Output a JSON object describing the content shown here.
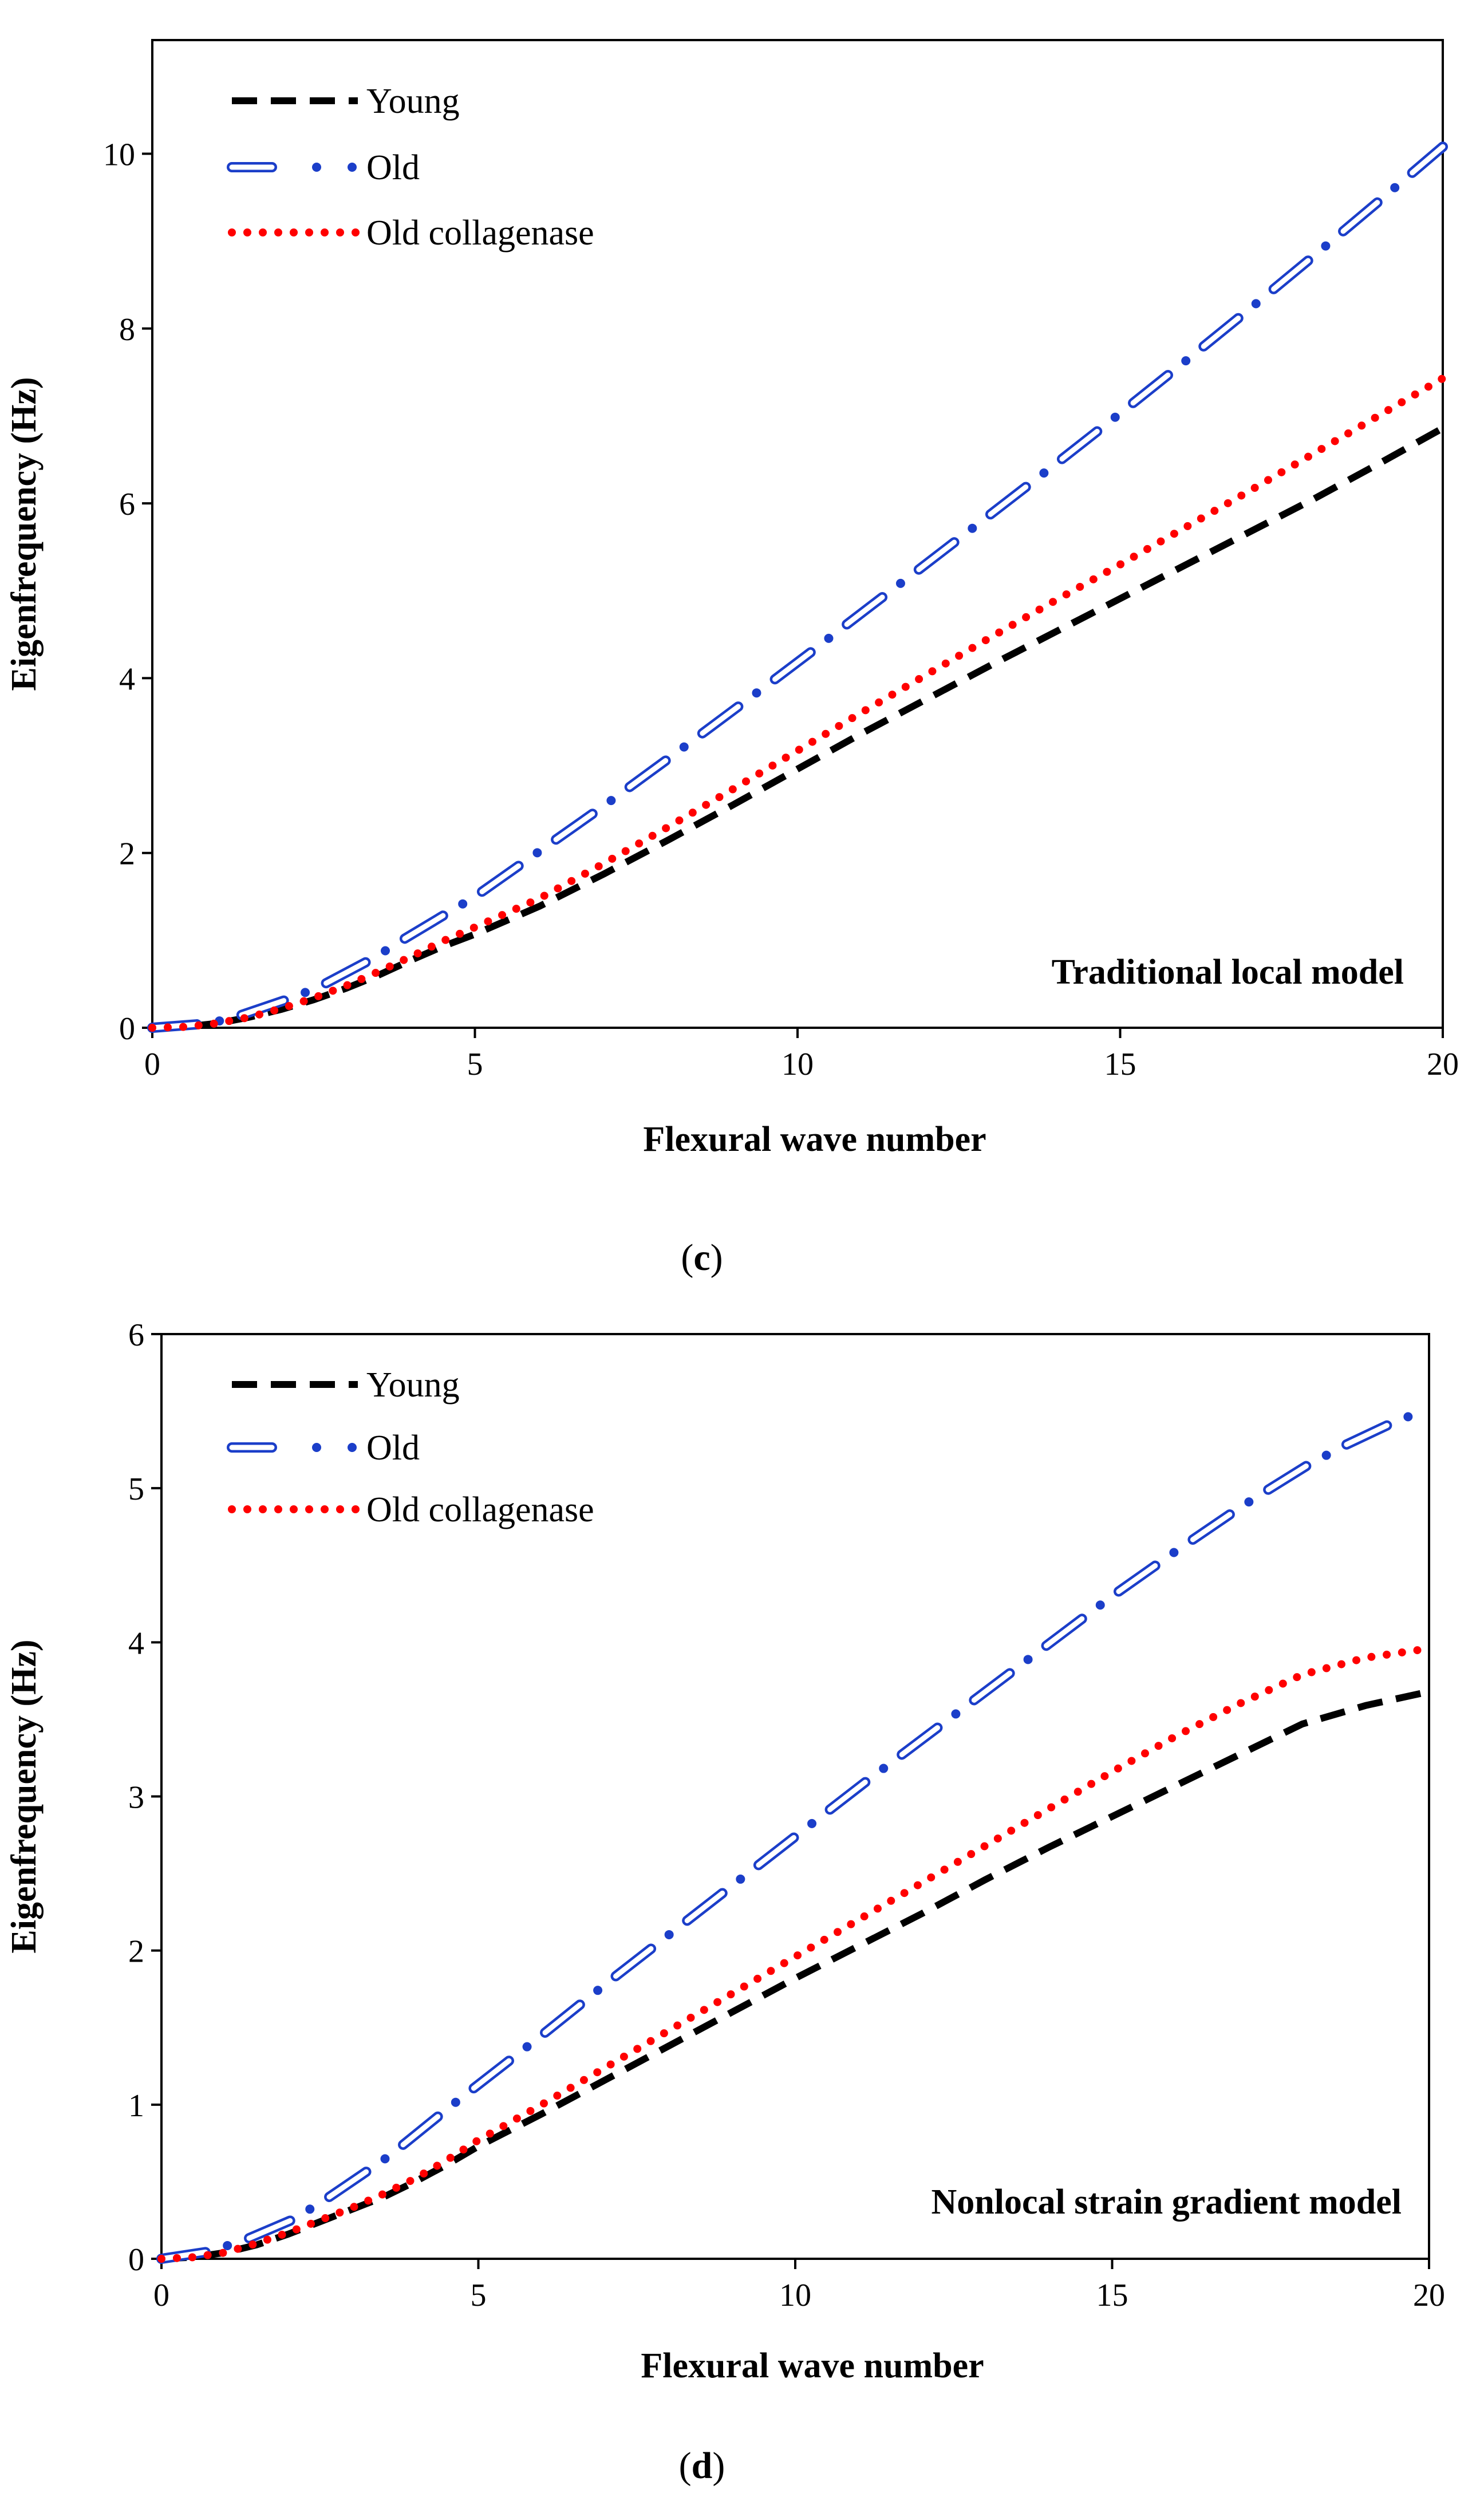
{
  "chart_data": [
    {
      "type": "line",
      "panel_label": "c",
      "xlabel": "Flexural wave number",
      "ylabel": "Eigenfrequency (Hz)",
      "annotation": "Traditional local model",
      "xlim": [
        0,
        20
      ],
      "ylim": [
        0,
        11.3
      ],
      "xticks": [
        0,
        5,
        10,
        15,
        20
      ],
      "yticks": [
        0,
        2,
        4,
        6,
        8,
        10
      ],
      "x": [
        0,
        0.5,
        1,
        1.5,
        2,
        2.5,
        3,
        3.5,
        4,
        4.5,
        5,
        6,
        7,
        8,
        9,
        10,
        11,
        12,
        13,
        14,
        15,
        16,
        17,
        18,
        19,
        20
      ],
      "series": [
        {
          "name": "Young",
          "color": "#000000",
          "style": "dash",
          "values": [
            0,
            0.01,
            0.05,
            0.12,
            0.21,
            0.32,
            0.45,
            0.6,
            0.77,
            0.93,
            1.07,
            1.39,
            1.76,
            2.15,
            2.55,
            2.96,
            3.37,
            3.76,
            4.15,
            4.53,
            4.91,
            5.29,
            5.67,
            6.05,
            6.45,
            6.86
          ]
        },
        {
          "name": "Old",
          "color": "#1b3ec9",
          "style": "dashdot",
          "values": [
            0,
            0.02,
            0.07,
            0.17,
            0.3,
            0.44,
            0.62,
            0.83,
            1.06,
            1.28,
            1.5,
            2.02,
            2.54,
            3.08,
            3.63,
            4.18,
            4.75,
            5.31,
            5.88,
            6.45,
            7.03,
            7.62,
            8.22,
            8.83,
            9.45,
            10.08
          ]
        },
        {
          "name": "Old collagenase",
          "color": "#ff0000",
          "style": "dot",
          "values": [
            0,
            0.01,
            0.05,
            0.12,
            0.22,
            0.34,
            0.48,
            0.64,
            0.81,
            0.99,
            1.15,
            1.48,
            1.88,
            2.3,
            2.73,
            3.17,
            3.61,
            4.04,
            4.47,
            4.89,
            5.3,
            5.72,
            6.14,
            6.57,
            7.0,
            7.43
          ]
        }
      ]
    },
    {
      "type": "line",
      "panel_label": "d",
      "xlabel": "Flexural wave number",
      "ylabel": "Eigenfrequency (Hz)",
      "annotation": "Nonlocal strain gradient model",
      "xlim": [
        0,
        20
      ],
      "ylim": [
        0,
        6
      ],
      "xticks": [
        0,
        5,
        10,
        15,
        20
      ],
      "yticks": [
        0,
        1,
        2,
        3,
        4,
        5,
        6
      ],
      "x": [
        0,
        0.5,
        1,
        1.5,
        2,
        2.5,
        3,
        3.5,
        4,
        4.5,
        5,
        6,
        7,
        8,
        9,
        10,
        11,
        12,
        13,
        14,
        15,
        16,
        17,
        18,
        19,
        20
      ],
      "series": [
        {
          "name": "Young",
          "color": "#000000",
          "style": "dash",
          "values": [
            0,
            0.01,
            0.04,
            0.09,
            0.16,
            0.24,
            0.32,
            0.4,
            0.5,
            0.61,
            0.73,
            0.94,
            1.16,
            1.38,
            1.6,
            1.82,
            2.03,
            2.24,
            2.46,
            2.67,
            2.87,
            3.07,
            3.27,
            3.47,
            3.59,
            3.68
          ]
        },
        {
          "name": "Old",
          "color": "#1b3ec9",
          "style": "dashdot",
          "values": [
            0,
            0.02,
            0.08,
            0.15,
            0.24,
            0.36,
            0.5,
            0.64,
            0.8,
            0.97,
            1.13,
            1.45,
            1.78,
            2.1,
            2.42,
            2.74,
            3.06,
            3.37,
            3.68,
            3.99,
            4.3,
            4.59,
            4.87,
            5.13,
            5.35,
            5.52
          ]
        },
        {
          "name": "Old collagenase",
          "color": "#ff0000",
          "style": "dot",
          "values": [
            0,
            0.01,
            0.04,
            0.1,
            0.17,
            0.25,
            0.33,
            0.42,
            0.52,
            0.64,
            0.77,
            1.0,
            1.24,
            1.48,
            1.72,
            1.96,
            2.2,
            2.44,
            2.68,
            2.92,
            3.16,
            3.39,
            3.6,
            3.79,
            3.9,
            3.96
          ]
        }
      ]
    }
  ]
}
